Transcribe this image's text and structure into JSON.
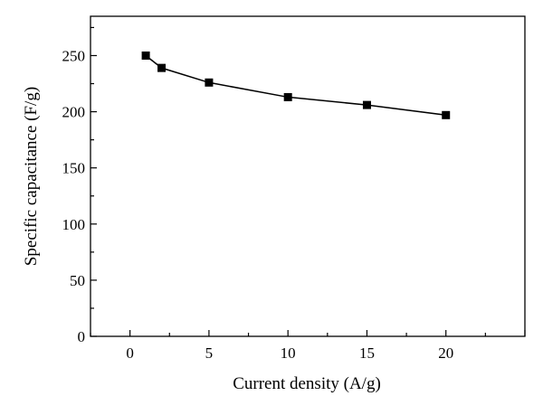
{
  "chart_data": {
    "type": "line",
    "title": "",
    "xlabel": "Current density (A/g)",
    "ylabel": "Specific capacitance (F/g)",
    "xlim": [
      -2.5,
      25
    ],
    "ylim": [
      0,
      285
    ],
    "x_ticks": [
      0,
      5,
      10,
      15,
      20
    ],
    "x_tick_labels": [
      "0",
      "5",
      "10",
      "15",
      "20"
    ],
    "y_ticks": [
      0,
      50,
      100,
      150,
      200,
      250
    ],
    "y_tick_labels": [
      "0",
      "50",
      "100",
      "150",
      "200",
      "250"
    ],
    "grid": false,
    "legend": "none",
    "marker": "square",
    "color": "#000000",
    "series": [
      {
        "x": [
          1,
          2,
          5,
          10,
          15,
          20
        ],
        "y": [
          250,
          239,
          226,
          213,
          206,
          197
        ]
      }
    ]
  }
}
